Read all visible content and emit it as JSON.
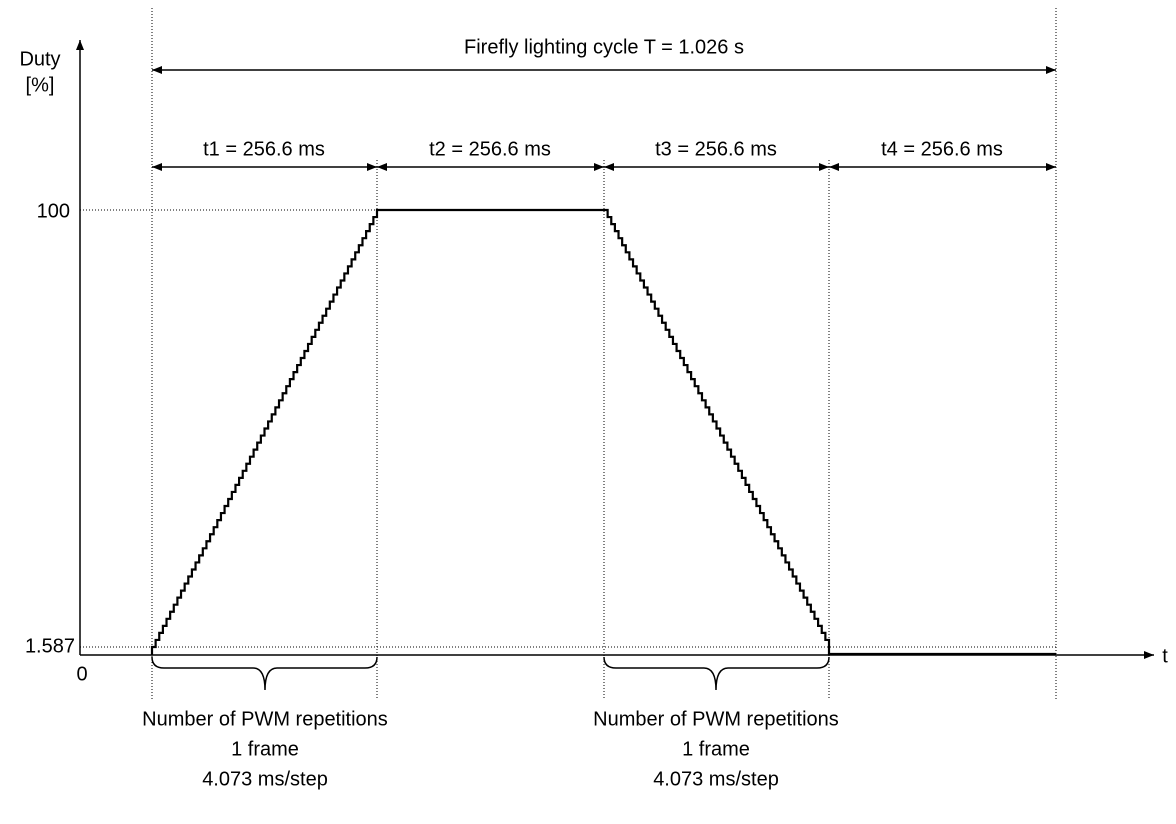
{
  "y_axis": {
    "label_lines": [
      "Duty",
      "[%]"
    ],
    "ticks": [
      "100",
      "1.587",
      "0"
    ]
  },
  "x_axis_label": "t",
  "cycle_label": "Firefly lighting cycle T = 1.026 s",
  "intervals": [
    "t1 = 256.6 ms",
    "t2 = 256.6 ms",
    "t3 = 256.6 ms",
    "t4 = 256.6 ms"
  ],
  "annotations": [
    {
      "lines": [
        "Number of PWM repetitions",
        "1 frame",
        "4.073 ms/step"
      ]
    },
    {
      "lines": [
        "Number of PWM repetitions",
        "1 frame",
        "4.073 ms/step"
      ]
    }
  ]
}
